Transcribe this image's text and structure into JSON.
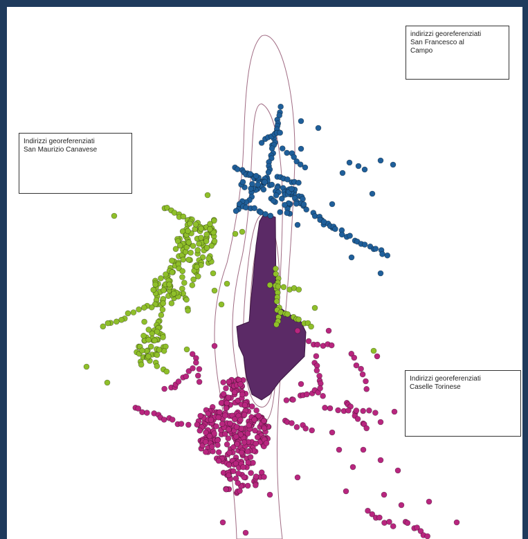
{
  "frame_color": "#1f3a5c",
  "colors": {
    "san_francesco": "#1f5f9a",
    "san_maurizio": "#8fbf2a",
    "caselle": "#b8267f",
    "airport": "#5b2a66",
    "contour": "#a06b83"
  },
  "labels": {
    "san_francesco": "indirizzi georeferenziati\nSan Francesco al\nCampo",
    "san_maurizio": "Indirizzi georeferenziati\nSan Maurizio Canavese",
    "caselle": "Indirizzi georeferenziati\nCaselle Torinese"
  }
}
